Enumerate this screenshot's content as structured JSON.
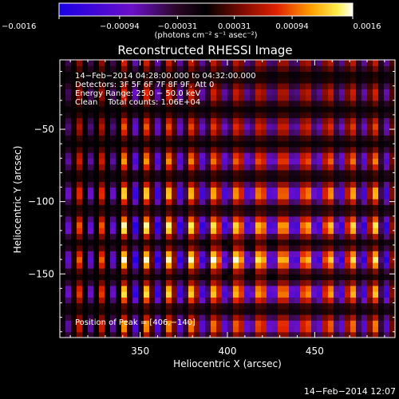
{
  "chart_data": {
    "type": "heatmap",
    "title": "Reconstructed RHESSI Image",
    "xlabel": "Heliocentric X (arcsec)",
    "ylabel": "Heliocentric Y (arcsec)",
    "xlim": [
      304,
      496
    ],
    "ylim": [
      -194,
      -2
    ],
    "x_ticks": [
      350,
      400,
      450
    ],
    "y_ticks": [
      -50,
      -100,
      -150
    ],
    "x_tick_labels": [
      "350",
      "400",
      "450"
    ],
    "y_tick_labels": [
      "−50",
      "−100",
      "−150"
    ],
    "colorbar": {
      "range": [
        -0.0016,
        0.0016
      ],
      "tick_values": [
        -0.0016,
        -0.00094,
        -0.00031,
        0.00031,
        0.00094,
        0.0016
      ],
      "tick_labels": [
        "−0.0016",
        "−0.00094",
        "−0.00031",
        "0.00031",
        "0.00094",
        "0.0016"
      ],
      "unit_label": "(photons cm⁻² s⁻¹ asec⁻²)",
      "colormap": "rhessi-fire"
    },
    "annotations": [
      "14−Feb−2014 04:28:00.000 to 04:32:00.000",
      "Detectors: 3F 5F 6F 7F 8F 9F, Att 0",
      "Energy Range: 25.0 − 50.0 keV",
      "Clean    Total counts: 1.06E+04"
    ],
    "peak_label": "Position of Peak = [406,−140]",
    "peak": [
      406,
      -140
    ],
    "pattern": {
      "x_period_arcsec": 13,
      "y_period_arcsec": 23,
      "value_range": [
        -0.0016,
        0.0016
      ]
    }
  },
  "footer": {
    "timestamp": "14−Feb−2014 12:07"
  },
  "colors": {
    "background": "#000000",
    "text": "#ffffff",
    "axis": "#ffffff"
  }
}
